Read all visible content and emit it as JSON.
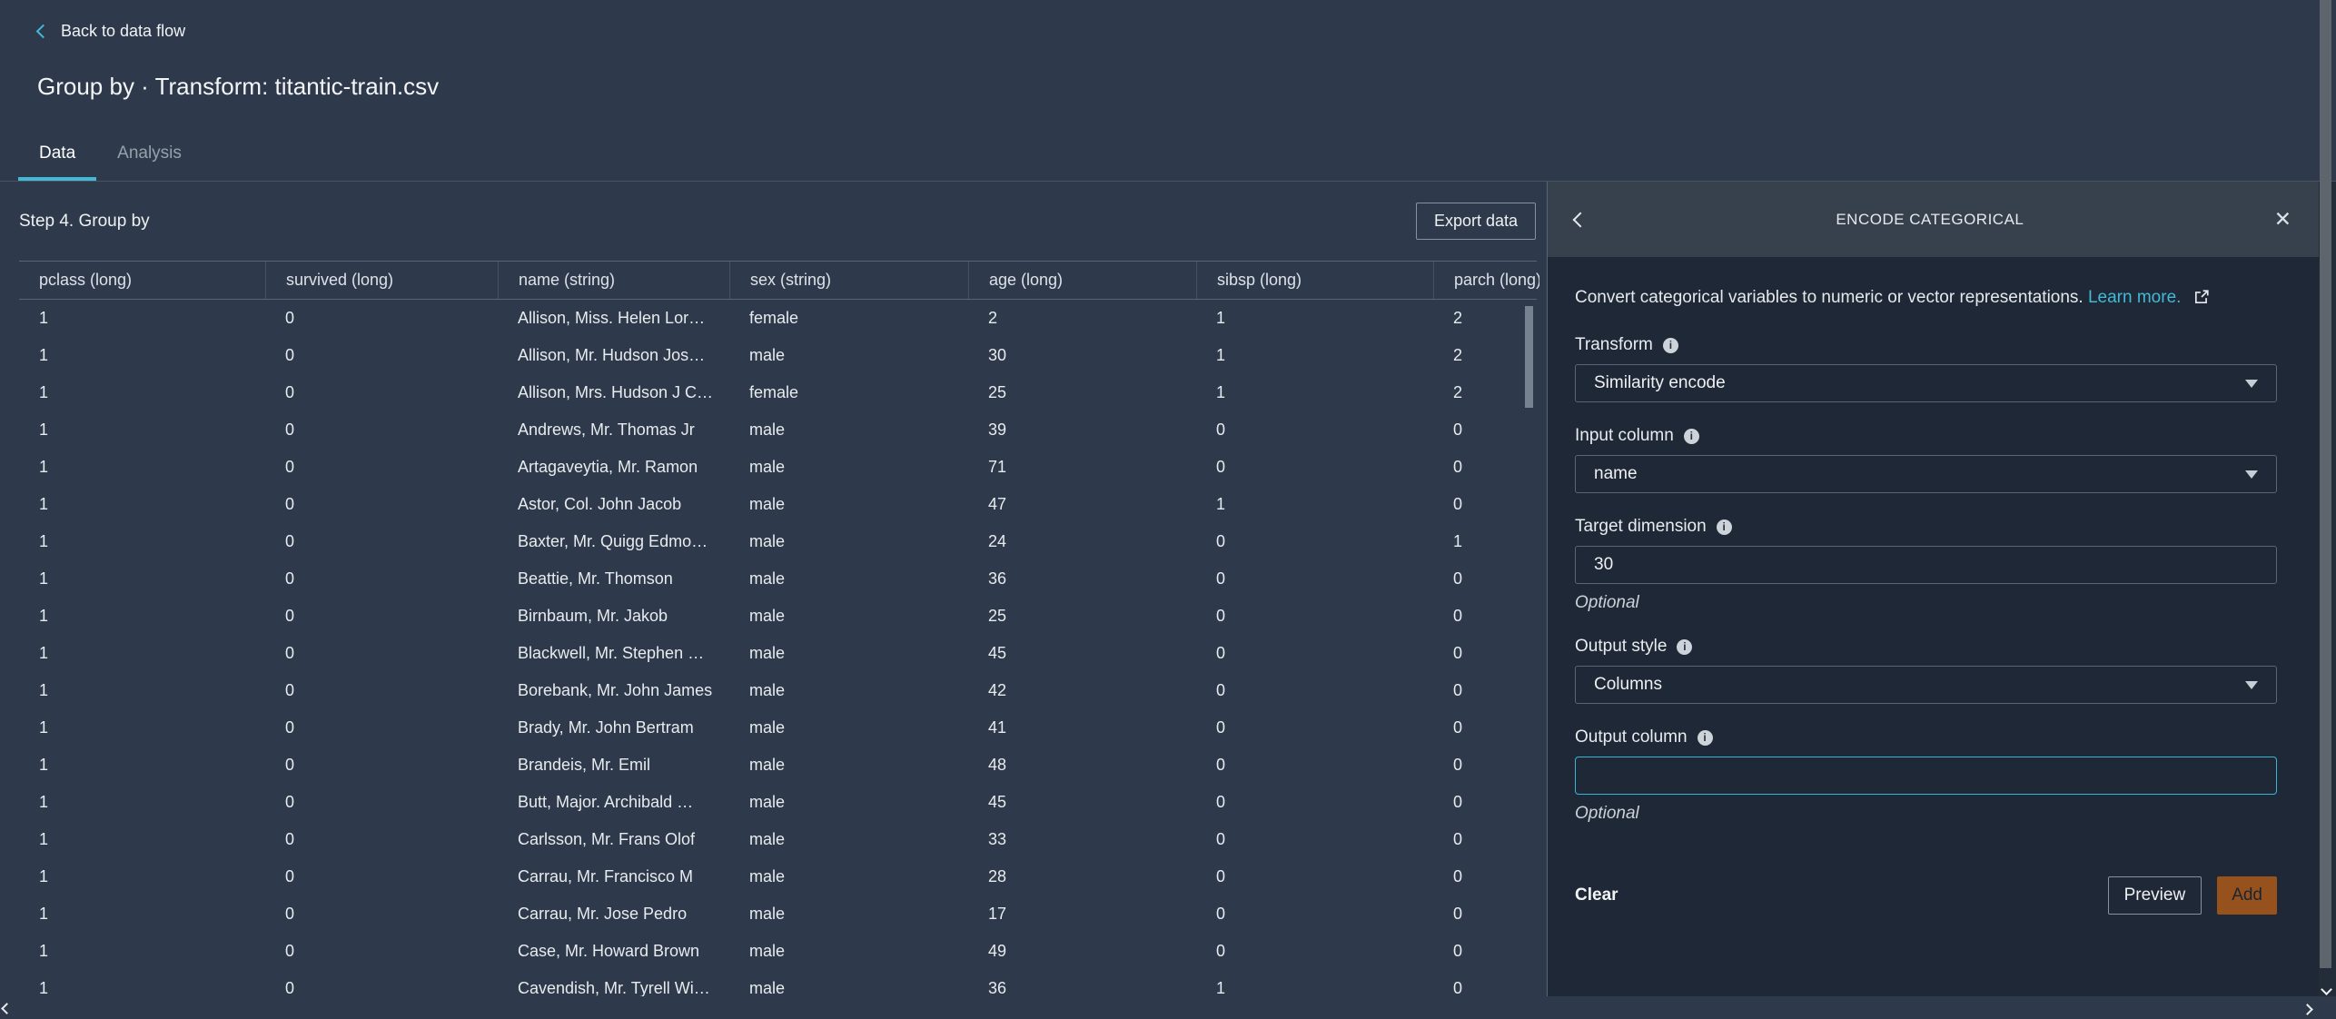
{
  "colors": {
    "page_bg": "#2e3a4b",
    "panel_body_bg": "#1e2836",
    "panel_header_bg": "#37414e",
    "accent_cyan": "#44b9d6",
    "add_button_bg": "#96511d"
  },
  "header": {
    "back_link": "Back to data flow",
    "title": "Group by · Transform: titantic-train.csv",
    "tabs": [
      {
        "label": "Data",
        "active": true
      },
      {
        "label": "Analysis",
        "active": false
      }
    ]
  },
  "toolbar": {
    "step_label": "Step 4. Group by",
    "export_button": "Export data"
  },
  "table": {
    "columns": [
      "pclass (long)",
      "survived (long)",
      "name (string)",
      "sex (string)",
      "age (long)",
      "sibsp (long)",
      "parch (long)"
    ],
    "rows": [
      [
        "1",
        "0",
        "Allison, Miss. Helen Lor…",
        "female",
        "2",
        "1",
        "2"
      ],
      [
        "1",
        "0",
        "Allison, Mr. Hudson Jos…",
        "male",
        "30",
        "1",
        "2"
      ],
      [
        "1",
        "0",
        "Allison, Mrs. Hudson J C…",
        "female",
        "25",
        "1",
        "2"
      ],
      [
        "1",
        "0",
        "Andrews, Mr. Thomas Jr",
        "male",
        "39",
        "0",
        "0"
      ],
      [
        "1",
        "0",
        "Artagaveytia, Mr. Ramon",
        "male",
        "71",
        "0",
        "0"
      ],
      [
        "1",
        "0",
        "Astor, Col. John Jacob",
        "male",
        "47",
        "1",
        "0"
      ],
      [
        "1",
        "0",
        "Baxter, Mr. Quigg Edmo…",
        "male",
        "24",
        "0",
        "1"
      ],
      [
        "1",
        "0",
        "Beattie, Mr. Thomson",
        "male",
        "36",
        "0",
        "0"
      ],
      [
        "1",
        "0",
        "Birnbaum, Mr. Jakob",
        "male",
        "25",
        "0",
        "0"
      ],
      [
        "1",
        "0",
        "Blackwell, Mr. Stephen …",
        "male",
        "45",
        "0",
        "0"
      ],
      [
        "1",
        "0",
        "Borebank, Mr. John James",
        "male",
        "42",
        "0",
        "0"
      ],
      [
        "1",
        "0",
        "Brady, Mr. John Bertram",
        "male",
        "41",
        "0",
        "0"
      ],
      [
        "1",
        "0",
        "Brandeis, Mr. Emil",
        "male",
        "48",
        "0",
        "0"
      ],
      [
        "1",
        "0",
        "Butt, Major. Archibald …",
        "male",
        "45",
        "0",
        "0"
      ],
      [
        "1",
        "0",
        "Carlsson, Mr. Frans Olof",
        "male",
        "33",
        "0",
        "0"
      ],
      [
        "1",
        "0",
        "Carrau, Mr. Francisco M",
        "male",
        "28",
        "0",
        "0"
      ],
      [
        "1",
        "0",
        "Carrau, Mr. Jose Pedro",
        "male",
        "17",
        "0",
        "0"
      ],
      [
        "1",
        "0",
        "Case, Mr. Howard Brown",
        "male",
        "49",
        "0",
        "0"
      ],
      [
        "1",
        "0",
        "Cavendish, Mr. Tyrell Wi…",
        "male",
        "36",
        "1",
        "0"
      ]
    ]
  },
  "panel": {
    "title": "ENCODE CATEGORICAL",
    "description": "Convert categorical variables to numeric or vector representations.",
    "learn_more_link": "Learn more.",
    "fields": [
      {
        "id": "transform",
        "label": "Transform",
        "type": "select",
        "value": "Similarity encode"
      },
      {
        "id": "input-column",
        "label": "Input column",
        "type": "select",
        "value": "name"
      },
      {
        "id": "target-dimension",
        "label": "Target dimension",
        "type": "input",
        "value": "30",
        "note": "Optional"
      },
      {
        "id": "output-style",
        "label": "Output style",
        "type": "select",
        "value": "Columns"
      },
      {
        "id": "output-column",
        "label": "Output column",
        "type": "input",
        "value": "",
        "note": "Optional",
        "focused": true
      }
    ],
    "footer": {
      "clear": "Clear",
      "preview": "Preview",
      "add": "Add"
    }
  }
}
